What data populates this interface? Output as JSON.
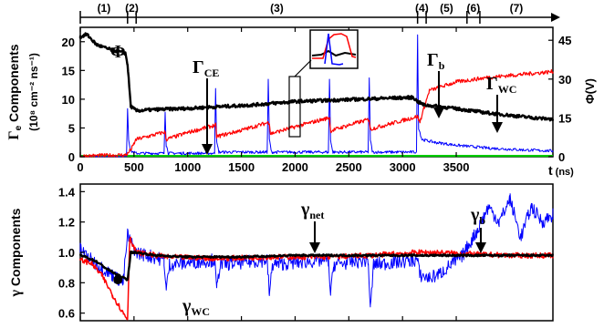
{
  "chart_data": [
    {
      "type": "line",
      "ylabel_left": "Γe Components",
      "ylabel_left_units": "(10⁸ cm⁻² ns⁻¹)",
      "ylabel_left_symbol": "Γ",
      "ylabel_left_sub": "e",
      "ylabel_left_rest": " Components",
      "ylabel_right": "Φ(V)",
      "xlabel": "t (ns)",
      "xlabel_t": "t",
      "xlabel_unit": "(ns)",
      "xlim": [
        0,
        4400
      ],
      "ylim_left": [
        0,
        22.5
      ],
      "ylim_right": [
        0,
        50
      ],
      "x_ticks": [
        0,
        500,
        1000,
        1500,
        2000,
        2500,
        3000,
        3500
      ],
      "y_ticks_left": [
        0,
        5,
        10,
        15,
        20
      ],
      "y_ticks_right": [
        0,
        15,
        30,
        45
      ],
      "phases": [
        {
          "label": "(1)",
          "start": 0,
          "end": 440
        },
        {
          "label": "(2)",
          "start": 440,
          "end": 520
        },
        {
          "label": "(3)",
          "start": 520,
          "end": 3140
        },
        {
          "label": "(4)",
          "start": 3140,
          "end": 3220
        },
        {
          "label": "(5)",
          "start": 3220,
          "end": 3600
        },
        {
          "label": "(6)",
          "start": 3600,
          "end": 3720
        },
        {
          "label": "(7)",
          "start": 3720,
          "end": 4400
        }
      ],
      "annotations": {
        "phi": "Φ",
        "gamma_ce": "Γ",
        "gamma_ce_sub": "CE",
        "gamma_b": "Γ",
        "gamma_b_sub": "b",
        "gamma_wc": "Γ",
        "gamma_wc_sub": "WC"
      },
      "series": [
        {
          "color": "#000000",
          "x": [
            0,
            60,
            150,
            250,
            350,
            420,
            440,
            470,
            520,
            700,
            1000,
            1300,
            1600,
            1800,
            2000,
            2300,
            2600,
            2900,
            3100,
            3140,
            3200,
            3400,
            3600,
            3800,
            4000,
            4200,
            4400
          ],
          "y": [
            20.8,
            21.3,
            19.5,
            18.8,
            18.3,
            18.0,
            16.0,
            8.8,
            8.0,
            8.2,
            8.4,
            8.7,
            9.0,
            9.3,
            9.6,
            9.8,
            10.0,
            10.2,
            10.3,
            9.6,
            9.0,
            8.6,
            8.1,
            7.6,
            7.2,
            6.8,
            6.5
          ]
        },
        {
          "color": "#ff0000",
          "x": [
            0,
            420,
            440,
            480,
            520,
            790,
            800,
            1000,
            1260,
            1270,
            1500,
            1760,
            1770,
            2000,
            2320,
            2330,
            2500,
            2690,
            2700,
            2900,
            3140,
            3160,
            3250,
            3500,
            3800,
            4100,
            4400
          ],
          "y": [
            0.1,
            0.3,
            0.5,
            1.5,
            3.0,
            4.3,
            3.0,
            4.2,
            5.5,
            3.5,
            4.6,
            6.0,
            4.0,
            5.2,
            6.8,
            4.5,
            5.5,
            6.5,
            4.8,
            5.8,
            7.0,
            6.0,
            11.5,
            13.0,
            13.8,
            14.3,
            14.8
          ]
        },
        {
          "color": "#0000ff",
          "x": [
            0,
            430,
            440,
            450,
            470,
            520,
            780,
            790,
            800,
            820,
            1250,
            1260,
            1270,
            1290,
            1740,
            1750,
            1760,
            1780,
            2310,
            2320,
            2330,
            2350,
            2680,
            2690,
            2700,
            2720,
            3130,
            3140,
            3150,
            3180,
            3300,
            3500,
            3800,
            4100,
            4400
          ],
          "y": [
            0,
            0,
            8.5,
            3.0,
            1.0,
            0.6,
            0.6,
            8.0,
            2.0,
            0.6,
            0.6,
            12.0,
            2.5,
            0.8,
            0.8,
            13.5,
            3.0,
            0.8,
            0.8,
            13.5,
            3.0,
            0.8,
            0.8,
            13.5,
            3.0,
            0.8,
            0.8,
            21.0,
            5.0,
            3.0,
            2.5,
            2.0,
            1.5,
            1.2,
            1.0
          ]
        },
        {
          "color": "#00cc00",
          "x": [
            0,
            4400
          ],
          "y": [
            0.15,
            0.15
          ]
        }
      ]
    },
    {
      "type": "line",
      "ylabel": "γ Components",
      "ylabel_symbol": "γ",
      "ylabel_rest": " Components",
      "xlim": [
        0,
        4400
      ],
      "ylim": [
        0.55,
        1.45
      ],
      "y_ticks": [
        0.6,
        0.8,
        1.0,
        1.2,
        1.4
      ],
      "annotations": {
        "gamma_net": "γ",
        "gamma_net_sub": "net",
        "gamma_b": "γ",
        "gamma_b_sub": "b",
        "gamma_wc": "γ",
        "gamma_wc_sub": "WC"
      },
      "series": [
        {
          "color": "#000000",
          "x": [
            0,
            50,
            150,
            250,
            350,
            440,
            470,
            520,
            700,
            1000,
            1500,
            2000,
            2500,
            3000,
            3140,
            3300,
            3600,
            4000,
            4400
          ],
          "y": [
            0.98,
            0.97,
            0.94,
            0.89,
            0.85,
            0.82,
            1.0,
            1.0,
            0.98,
            0.97,
            0.97,
            0.98,
            0.98,
            0.98,
            0.98,
            0.98,
            0.98,
            0.98,
            0.98
          ]
        },
        {
          "color": "#ff0000",
          "x": [
            0,
            100,
            200,
            300,
            400,
            440,
            460,
            520,
            800,
            1300,
            1800,
            2300,
            2700,
            3140,
            3300,
            3600,
            4000,
            4400
          ],
          "y": [
            0.95,
            0.93,
            0.85,
            0.72,
            0.6,
            0.56,
            1.1,
            1.0,
            0.97,
            0.96,
            0.97,
            0.97,
            0.98,
            1.0,
            1.0,
            0.99,
            0.98,
            0.98
          ]
        },
        {
          "color": "#0000ff",
          "x": [
            0,
            100,
            200,
            300,
            400,
            440,
            460,
            520,
            780,
            800,
            830,
            1250,
            1270,
            1300,
            1740,
            1760,
            1790,
            2310,
            2330,
            2360,
            2680,
            2700,
            2730,
            3140,
            3160,
            3250,
            3350,
            3450,
            3550,
            3700,
            3800,
            3900,
            4000,
            4100,
            4200,
            4300,
            4400
          ],
          "y": [
            1.02,
            0.95,
            0.9,
            0.85,
            0.8,
            1.12,
            1.08,
            1.0,
            0.95,
            0.75,
            0.92,
            0.95,
            0.75,
            0.92,
            0.95,
            0.72,
            0.92,
            0.95,
            0.72,
            0.92,
            0.95,
            0.62,
            0.92,
            0.95,
            0.85,
            0.83,
            0.86,
            0.92,
            0.97,
            1.15,
            1.3,
            1.2,
            1.35,
            1.1,
            1.3,
            1.2,
            1.25
          ]
        }
      ]
    }
  ]
}
